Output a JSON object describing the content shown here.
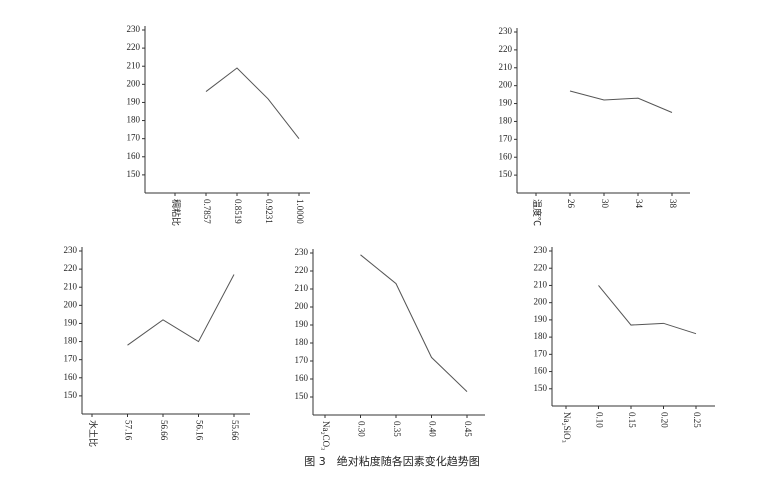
{
  "caption": "图 3　绝对粘度随各因素变化趋势图",
  "chart_data": [
    {
      "type": "line",
      "categories": [
        "稠粘比",
        "0.7857",
        "0.8519",
        "0.9231",
        "1.0000"
      ],
      "values": [
        null,
        196,
        209,
        192,
        170
      ],
      "color": "#555555",
      "ylim": [
        140,
        230
      ],
      "yticks": [
        150,
        160,
        170,
        180,
        190,
        200,
        210,
        220,
        230
      ]
    },
    {
      "type": "line",
      "categories": [
        "温度℃",
        "26",
        "30",
        "34",
        "38"
      ],
      "values": [
        null,
        197,
        192,
        193,
        185
      ],
      "color": "#555555",
      "ylim": [
        140,
        230
      ],
      "yticks": [
        150,
        160,
        170,
        180,
        190,
        200,
        210,
        220,
        230
      ]
    },
    {
      "type": "line",
      "categories": [
        "水土比",
        "57.16",
        "56.66",
        "56.16",
        "55.66"
      ],
      "values": [
        null,
        178,
        192,
        180,
        217
      ],
      "color": "#555555",
      "ylim": [
        140,
        230
      ],
      "yticks": [
        150,
        160,
        170,
        180,
        190,
        200,
        210,
        220,
        230
      ]
    },
    {
      "type": "line",
      "categories": [
        "Na₂CO₃",
        "0.30",
        "0.35",
        "0.40",
        "0.45"
      ],
      "values": [
        null,
        229,
        213,
        172,
        153
      ],
      "color": "#555555",
      "ylim": [
        140,
        230
      ],
      "yticks": [
        150,
        160,
        170,
        180,
        190,
        200,
        210,
        220,
        230
      ]
    },
    {
      "type": "line",
      "categories": [
        "Na₂SiO₃",
        "0.10",
        "0.15",
        "0.20",
        "0.25"
      ],
      "values": [
        null,
        210,
        187,
        188,
        182
      ],
      "color": "#555555",
      "ylim": [
        140,
        230
      ],
      "yticks": [
        150,
        160,
        170,
        180,
        190,
        200,
        210,
        220,
        230
      ]
    }
  ]
}
